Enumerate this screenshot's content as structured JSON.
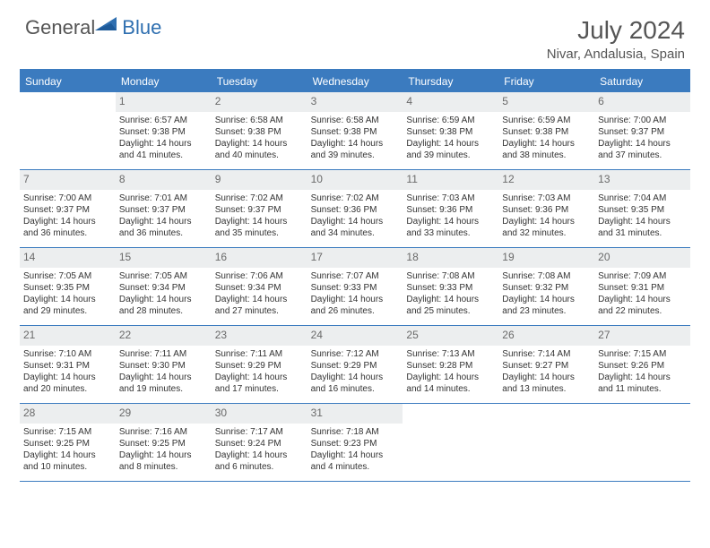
{
  "logo": {
    "general": "General",
    "blue": "Blue"
  },
  "title": "July 2024",
  "location": "Nivar, Andalusia, Spain",
  "colors": {
    "header_bar": "#3b7bbf",
    "daynum_bg": "#eceeef",
    "text": "#333333",
    "title_color": "#555555",
    "logo_blue": "#2f6fb0"
  },
  "day_labels": [
    "Sunday",
    "Monday",
    "Tuesday",
    "Wednesday",
    "Thursday",
    "Friday",
    "Saturday"
  ],
  "weeks": [
    [
      {
        "n": "",
        "sr": "",
        "ss": "",
        "dl": ""
      },
      {
        "n": "1",
        "sr": "6:57 AM",
        "ss": "9:38 PM",
        "dl": "14 hours and 41 minutes."
      },
      {
        "n": "2",
        "sr": "6:58 AM",
        "ss": "9:38 PM",
        "dl": "14 hours and 40 minutes."
      },
      {
        "n": "3",
        "sr": "6:58 AM",
        "ss": "9:38 PM",
        "dl": "14 hours and 39 minutes."
      },
      {
        "n": "4",
        "sr": "6:59 AM",
        "ss": "9:38 PM",
        "dl": "14 hours and 39 minutes."
      },
      {
        "n": "5",
        "sr": "6:59 AM",
        "ss": "9:38 PM",
        "dl": "14 hours and 38 minutes."
      },
      {
        "n": "6",
        "sr": "7:00 AM",
        "ss": "9:37 PM",
        "dl": "14 hours and 37 minutes."
      }
    ],
    [
      {
        "n": "7",
        "sr": "7:00 AM",
        "ss": "9:37 PM",
        "dl": "14 hours and 36 minutes."
      },
      {
        "n": "8",
        "sr": "7:01 AM",
        "ss": "9:37 PM",
        "dl": "14 hours and 36 minutes."
      },
      {
        "n": "9",
        "sr": "7:02 AM",
        "ss": "9:37 PM",
        "dl": "14 hours and 35 minutes."
      },
      {
        "n": "10",
        "sr": "7:02 AM",
        "ss": "9:36 PM",
        "dl": "14 hours and 34 minutes."
      },
      {
        "n": "11",
        "sr": "7:03 AM",
        "ss": "9:36 PM",
        "dl": "14 hours and 33 minutes."
      },
      {
        "n": "12",
        "sr": "7:03 AM",
        "ss": "9:36 PM",
        "dl": "14 hours and 32 minutes."
      },
      {
        "n": "13",
        "sr": "7:04 AM",
        "ss": "9:35 PM",
        "dl": "14 hours and 31 minutes."
      }
    ],
    [
      {
        "n": "14",
        "sr": "7:05 AM",
        "ss": "9:35 PM",
        "dl": "14 hours and 29 minutes."
      },
      {
        "n": "15",
        "sr": "7:05 AM",
        "ss": "9:34 PM",
        "dl": "14 hours and 28 minutes."
      },
      {
        "n": "16",
        "sr": "7:06 AM",
        "ss": "9:34 PM",
        "dl": "14 hours and 27 minutes."
      },
      {
        "n": "17",
        "sr": "7:07 AM",
        "ss": "9:33 PM",
        "dl": "14 hours and 26 minutes."
      },
      {
        "n": "18",
        "sr": "7:08 AM",
        "ss": "9:33 PM",
        "dl": "14 hours and 25 minutes."
      },
      {
        "n": "19",
        "sr": "7:08 AM",
        "ss": "9:32 PM",
        "dl": "14 hours and 23 minutes."
      },
      {
        "n": "20",
        "sr": "7:09 AM",
        "ss": "9:31 PM",
        "dl": "14 hours and 22 minutes."
      }
    ],
    [
      {
        "n": "21",
        "sr": "7:10 AM",
        "ss": "9:31 PM",
        "dl": "14 hours and 20 minutes."
      },
      {
        "n": "22",
        "sr": "7:11 AM",
        "ss": "9:30 PM",
        "dl": "14 hours and 19 minutes."
      },
      {
        "n": "23",
        "sr": "7:11 AM",
        "ss": "9:29 PM",
        "dl": "14 hours and 17 minutes."
      },
      {
        "n": "24",
        "sr": "7:12 AM",
        "ss": "9:29 PM",
        "dl": "14 hours and 16 minutes."
      },
      {
        "n": "25",
        "sr": "7:13 AM",
        "ss": "9:28 PM",
        "dl": "14 hours and 14 minutes."
      },
      {
        "n": "26",
        "sr": "7:14 AM",
        "ss": "9:27 PM",
        "dl": "14 hours and 13 minutes."
      },
      {
        "n": "27",
        "sr": "7:15 AM",
        "ss": "9:26 PM",
        "dl": "14 hours and 11 minutes."
      }
    ],
    [
      {
        "n": "28",
        "sr": "7:15 AM",
        "ss": "9:25 PM",
        "dl": "14 hours and 10 minutes."
      },
      {
        "n": "29",
        "sr": "7:16 AM",
        "ss": "9:25 PM",
        "dl": "14 hours and 8 minutes."
      },
      {
        "n": "30",
        "sr": "7:17 AM",
        "ss": "9:24 PM",
        "dl": "14 hours and 6 minutes."
      },
      {
        "n": "31",
        "sr": "7:18 AM",
        "ss": "9:23 PM",
        "dl": "14 hours and 4 minutes."
      },
      {
        "n": "",
        "sr": "",
        "ss": "",
        "dl": ""
      },
      {
        "n": "",
        "sr": "",
        "ss": "",
        "dl": ""
      },
      {
        "n": "",
        "sr": "",
        "ss": "",
        "dl": ""
      }
    ]
  ],
  "labels": {
    "sunrise": "Sunrise:",
    "sunset": "Sunset:",
    "daylight": "Daylight:"
  }
}
